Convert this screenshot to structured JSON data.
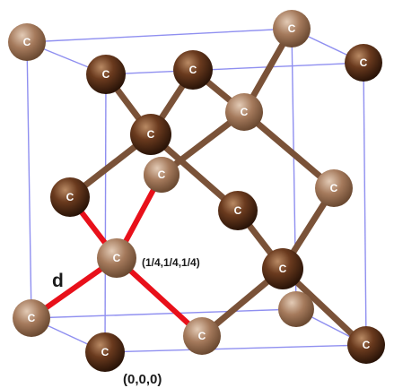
{
  "atom_symbol": "C",
  "labels": {
    "tetra_coord": "(1/4,1/4,1/4)",
    "origin_coord": "(0,0,0)",
    "bond_length": "d"
  },
  "colors": {
    "cell_edge": "#8f8ff0",
    "bond": "#7a5238",
    "highlight_bond": "#e8101a",
    "atom_front": "#5a2c14",
    "atom_back": "#a57a5c"
  }
}
